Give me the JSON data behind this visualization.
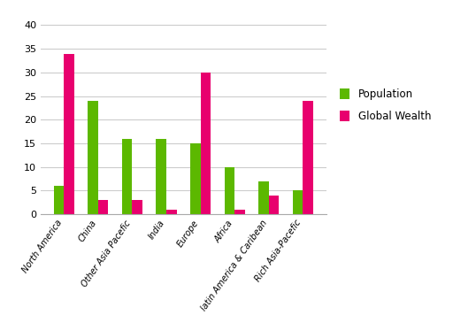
{
  "categories": [
    "North America",
    "China",
    "Other Asia Pacefic",
    "India",
    "Europe",
    "Africa",
    "latin America & Caribean",
    "Rich Asia-Pacefic"
  ],
  "population": [
    6,
    24,
    16,
    16,
    15,
    10,
    7,
    5
  ],
  "global_wealth": [
    34,
    3,
    3,
    1,
    30,
    1,
    4,
    24
  ],
  "population_color": "#5cb800",
  "global_wealth_color": "#e8006e",
  "bar_width": 0.3,
  "ylim": [
    0,
    42
  ],
  "yticks": [
    0,
    5,
    10,
    15,
    20,
    25,
    30,
    35,
    40
  ],
  "legend_labels": [
    "Population",
    "Global Wealth"
  ],
  "background_color": "#ffffff",
  "grid_color": "#cccccc",
  "tick_label_fontsize": 7.0,
  "legend_fontsize": 8.5,
  "ytick_fontsize": 8.0
}
